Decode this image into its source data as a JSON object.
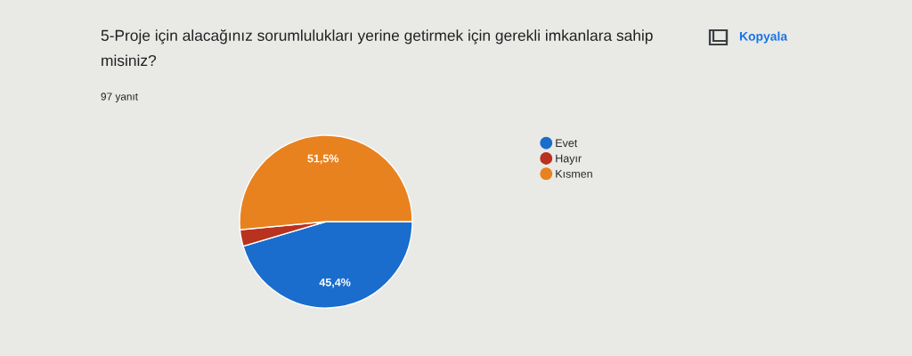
{
  "chart_data": {
    "type": "pie",
    "title": "5-Proje için alacağınız sorumlulukları yerine getirmek için gerekli imkanlara sahip misiniz?",
    "subtitle": "97 yanıt",
    "categories": [
      "Evet",
      "Hayır",
      "Kısmen"
    ],
    "values": [
      45.4,
      3.1,
      51.5
    ],
    "value_labels": [
      "45,4%",
      null,
      "51,5%"
    ],
    "colors": [
      "#1a6dcc",
      "#b8321f",
      "#e8821f"
    ],
    "legend": "right",
    "annotations": [
      "Kopyala"
    ]
  }
}
